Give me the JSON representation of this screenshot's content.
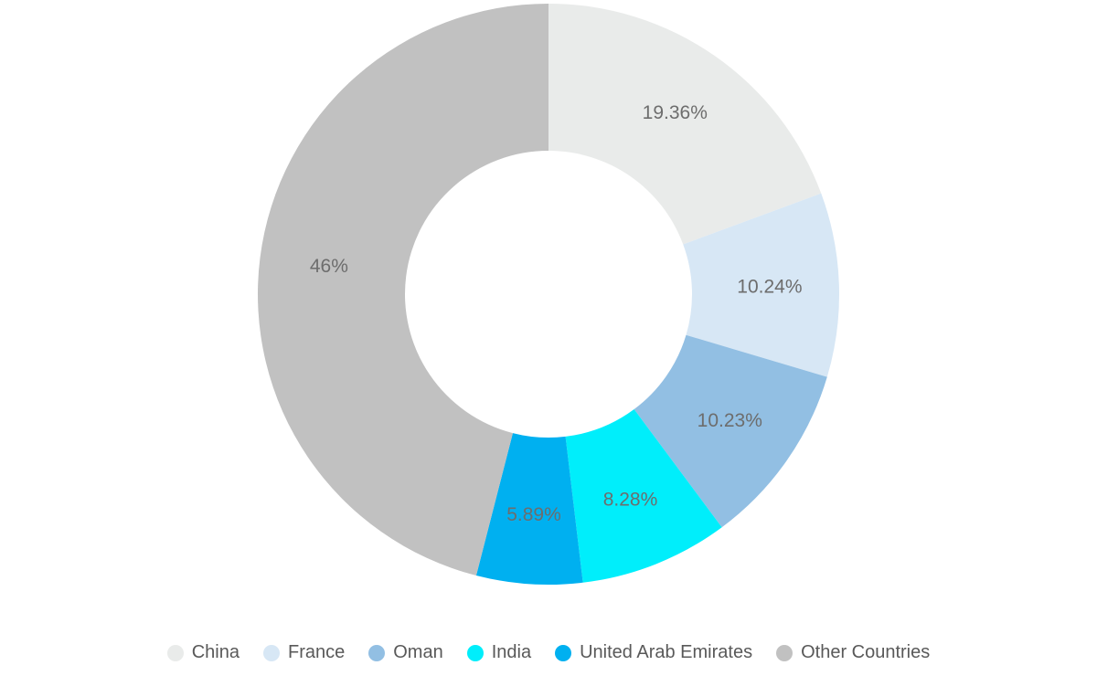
{
  "page": {
    "background": "#ffffff"
  },
  "chart_data": {
    "type": "pie",
    "subtype": "donut",
    "title": "",
    "direction": "clockwise",
    "start_angle_deg": 0,
    "categories": [
      "China",
      "France",
      "Oman",
      "India",
      "United Arab Emirates",
      "Other Countries"
    ],
    "values": [
      19.36,
      10.24,
      10.23,
      8.28,
      5.89,
      46
    ],
    "slice_labels": [
      "19.36%",
      "10.24%",
      "10.23%",
      "8.28%",
      "5.89%",
      "46%"
    ],
    "colors": [
      "#e9ebea",
      "#d7e7f5",
      "#92bfe3",
      "#00eefb",
      "#00b0f0",
      "#c1c1c1"
    ],
    "label_color": "#6d6d6d",
    "legend_position": "bottom",
    "legend_text_color": "#595959"
  }
}
